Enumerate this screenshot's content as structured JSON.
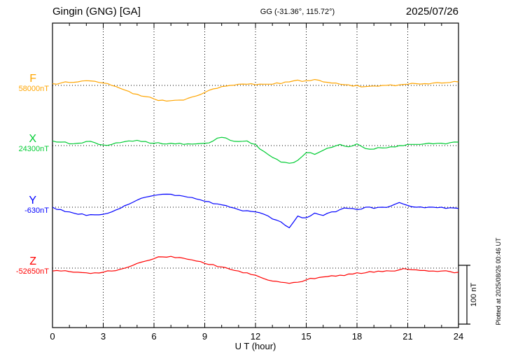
{
  "header": {
    "station": "Gingin (GNG)  [GA]",
    "coords": "GG (-31.36°, 115.72°)",
    "date": "2025/07/26"
  },
  "footer": {
    "xlabel": "U T (hour)"
  },
  "side": {
    "scale_label": "100 nT",
    "plotted_at": "Plotted at 2025/08/26 00:46 UT"
  },
  "chart_data": {
    "type": "line",
    "title": "Gingin (GNG) [GA]",
    "subtitle": "GG (-31.36°, 115.72°)",
    "date": "2025/07/26",
    "xlabel": "U T (hour)",
    "x_min": 0,
    "x_max": 24,
    "x_ticks": [
      0,
      3,
      6,
      9,
      12,
      15,
      18,
      21,
      24
    ],
    "sample_step_hours": 0.5,
    "scale_bar_nT": 100,
    "grid": "dotted vertical at 3h intervals, dotted horizontal at each component baseline",
    "series": [
      {
        "name": "F",
        "baseline_label": "58000nT",
        "baseline_nT": 58000,
        "color": "#FFA500",
        "offsets_nT": [
          3,
          4,
          5,
          6,
          8,
          7,
          4,
          0,
          -5,
          -10,
          -15,
          -19,
          -23,
          -25,
          -26,
          -25,
          -22,
          -18,
          -12,
          -6,
          -2,
          0,
          2,
          2,
          1,
          2,
          2,
          3,
          6,
          9,
          8,
          10,
          6,
          4,
          2,
          1,
          0,
          -2,
          -1,
          0,
          1,
          1,
          2,
          3,
          3,
          4,
          4,
          5,
          6
        ]
      },
      {
        "name": "X",
        "baseline_label": "24300nT",
        "baseline_nT": 24300,
        "color": "#00CC33",
        "offsets_nT": [
          8,
          6,
          3,
          4,
          7,
          5,
          1,
          2,
          5,
          8,
          9,
          7,
          4,
          3,
          4,
          4,
          3,
          3,
          4,
          8,
          14,
          9,
          7,
          8,
          2,
          -10,
          -20,
          -28,
          -30,
          -25,
          -12,
          -15,
          -8,
          -3,
          2,
          -2,
          3,
          -5,
          -6,
          -4,
          -2,
          0,
          2,
          2,
          3,
          3,
          4,
          5,
          6
        ]
      },
      {
        "name": "Y",
        "baseline_label": "-630nT",
        "baseline_nT": -630,
        "color": "#0000FF",
        "offsets_nT": [
          0,
          -4,
          -8,
          -12,
          -14,
          -13,
          -12,
          -8,
          -2,
          5,
          12,
          17,
          20,
          22,
          22,
          20,
          17,
          14,
          10,
          6,
          4,
          0,
          -4,
          -6,
          -8,
          -12,
          -20,
          -25,
          -35,
          -15,
          -18,
          -10,
          -14,
          -8,
          -4,
          -2,
          -4,
          0,
          -2,
          0,
          2,
          8,
          3,
          0,
          -1,
          0,
          0,
          -1,
          -2
        ]
      },
      {
        "name": "Z",
        "baseline_label": "-52650nT",
        "baseline_nT": -52650,
        "color": "#FF0000",
        "offsets_nT": [
          -5,
          -5,
          -6,
          -7,
          -8,
          -8,
          -7,
          -5,
          -2,
          2,
          8,
          12,
          16,
          19,
          20,
          18,
          15,
          12,
          8,
          6,
          2,
          -2,
          -5,
          -8,
          -12,
          -18,
          -22,
          -24,
          -26,
          -24,
          -20,
          -18,
          -15,
          -13,
          -12,
          -10,
          -8,
          -8,
          -7,
          -6,
          -5,
          -3,
          -2,
          -3,
          -4,
          -5,
          -5,
          -6,
          -7
        ]
      }
    ]
  }
}
